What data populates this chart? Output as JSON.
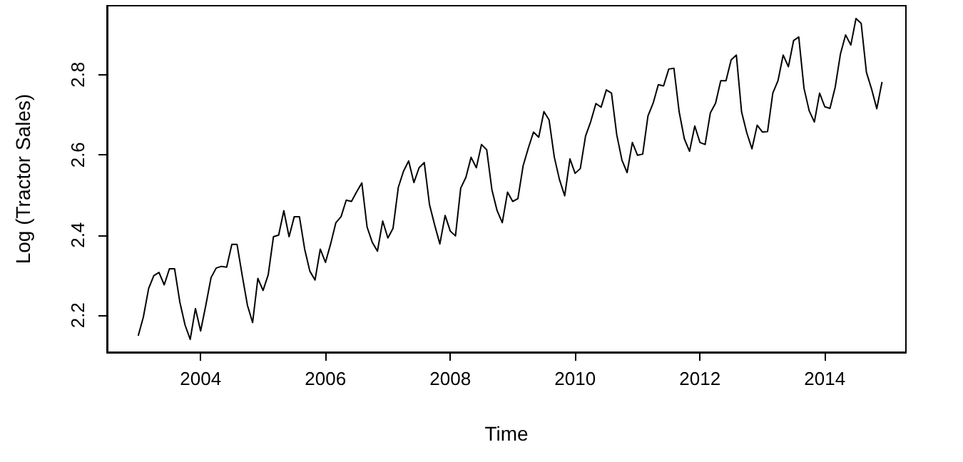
{
  "chart_data": {
    "type": "line",
    "xlabel": "Time",
    "ylabel": "Log (Tractor Sales)",
    "x": [
      2003,
      2003.083,
      2003.167,
      2003.25,
      2003.333,
      2003.417,
      2003.5,
      2003.583,
      2003.667,
      2003.75,
      2003.833,
      2003.917,
      2004,
      2004.083,
      2004.167,
      2004.25,
      2004.333,
      2004.417,
      2004.5,
      2004.583,
      2004.667,
      2004.75,
      2004.833,
      2004.917,
      2005,
      2005.083,
      2005.167,
      2005.25,
      2005.333,
      2005.417,
      2005.5,
      2005.583,
      2005.667,
      2005.75,
      2005.833,
      2005.917,
      2006,
      2006.083,
      2006.167,
      2006.25,
      2006.333,
      2006.417,
      2006.5,
      2006.583,
      2006.667,
      2006.75,
      2006.833,
      2006.917,
      2007,
      2007.083,
      2007.167,
      2007.25,
      2007.333,
      2007.417,
      2007.5,
      2007.583,
      2007.667,
      2007.75,
      2007.833,
      2007.917,
      2008,
      2008.083,
      2008.167,
      2008.25,
      2008.333,
      2008.417,
      2008.5,
      2008.583,
      2008.667,
      2008.75,
      2008.833,
      2008.917,
      2009,
      2009.083,
      2009.167,
      2009.25,
      2009.333,
      2009.417,
      2009.5,
      2009.583,
      2009.667,
      2009.75,
      2009.833,
      2009.917,
      2010,
      2010.083,
      2010.167,
      2010.25,
      2010.333,
      2010.417,
      2010.5,
      2010.583,
      2010.667,
      2010.75,
      2010.833,
      2010.917,
      2011,
      2011.083,
      2011.167,
      2011.25,
      2011.333,
      2011.417,
      2011.5,
      2011.583,
      2011.667,
      2011.75,
      2011.833,
      2011.917,
      2012,
      2012.083,
      2012.167,
      2012.25,
      2012.333,
      2012.417,
      2012.5,
      2012.583,
      2012.667,
      2012.75,
      2012.833,
      2012.917,
      2013,
      2013.083,
      2013.167,
      2013.25,
      2013.333,
      2013.417,
      2013.5,
      2013.583,
      2013.667,
      2013.75,
      2013.833,
      2013.917,
      2014,
      2014.083,
      2014.167,
      2014.25,
      2014.333,
      2014.417,
      2014.5,
      2014.583,
      2014.667,
      2014.75,
      2014.833,
      2014.917
    ],
    "series": [
      {
        "color": "#000000",
        "values": [
          2.149,
          2.196,
          2.267,
          2.299,
          2.307,
          2.276,
          2.316,
          2.316,
          2.233,
          2.176,
          2.14,
          2.217,
          2.161,
          2.225,
          2.294,
          2.318,
          2.322,
          2.32,
          2.377,
          2.377,
          2.299,
          2.225,
          2.182,
          2.292,
          2.262,
          2.301,
          2.396,
          2.4,
          2.461,
          2.396,
          2.446,
          2.446,
          2.365,
          2.31,
          2.288,
          2.365,
          2.332,
          2.378,
          2.431,
          2.446,
          2.487,
          2.484,
          2.508,
          2.53,
          2.42,
          2.382,
          2.36,
          2.435,
          2.393,
          2.417,
          2.519,
          2.559,
          2.585,
          2.531,
          2.568,
          2.581,
          2.476,
          2.425,
          2.378,
          2.449,
          2.41,
          2.398,
          2.517,
          2.544,
          2.594,
          2.568,
          2.626,
          2.613,
          2.513,
          2.461,
          2.431,
          2.507,
          2.484,
          2.491,
          2.573,
          2.617,
          2.657,
          2.644,
          2.708,
          2.687,
          2.594,
          2.538,
          2.498,
          2.59,
          2.554,
          2.566,
          2.647,
          2.683,
          2.728,
          2.719,
          2.762,
          2.754,
          2.65,
          2.587,
          2.556,
          2.631,
          2.599,
          2.602,
          2.697,
          2.729,
          2.775,
          2.772,
          2.814,
          2.816,
          2.707,
          2.64,
          2.609,
          2.672,
          2.631,
          2.626,
          2.705,
          2.729,
          2.785,
          2.785,
          2.837,
          2.849,
          2.707,
          2.655,
          2.615,
          2.674,
          2.657,
          2.658,
          2.754,
          2.785,
          2.849,
          2.82,
          2.885,
          2.894,
          2.766,
          2.71,
          2.682,
          2.754,
          2.72,
          2.716,
          2.769,
          2.851,
          2.899,
          2.874,
          2.94,
          2.928,
          2.806,
          2.764,
          2.715,
          2.782
        ]
      }
    ],
    "xlim": [
      2002.5,
      2015.3
    ],
    "xticks": [
      2004,
      2006,
      2008,
      2010,
      2012,
      2014
    ],
    "ylim": [
      2.108,
      2.972
    ],
    "yticks": [
      2.2,
      2.4,
      2.6,
      2.8
    ],
    "grid": false,
    "marker": "none",
    "line_style": "solid"
  }
}
